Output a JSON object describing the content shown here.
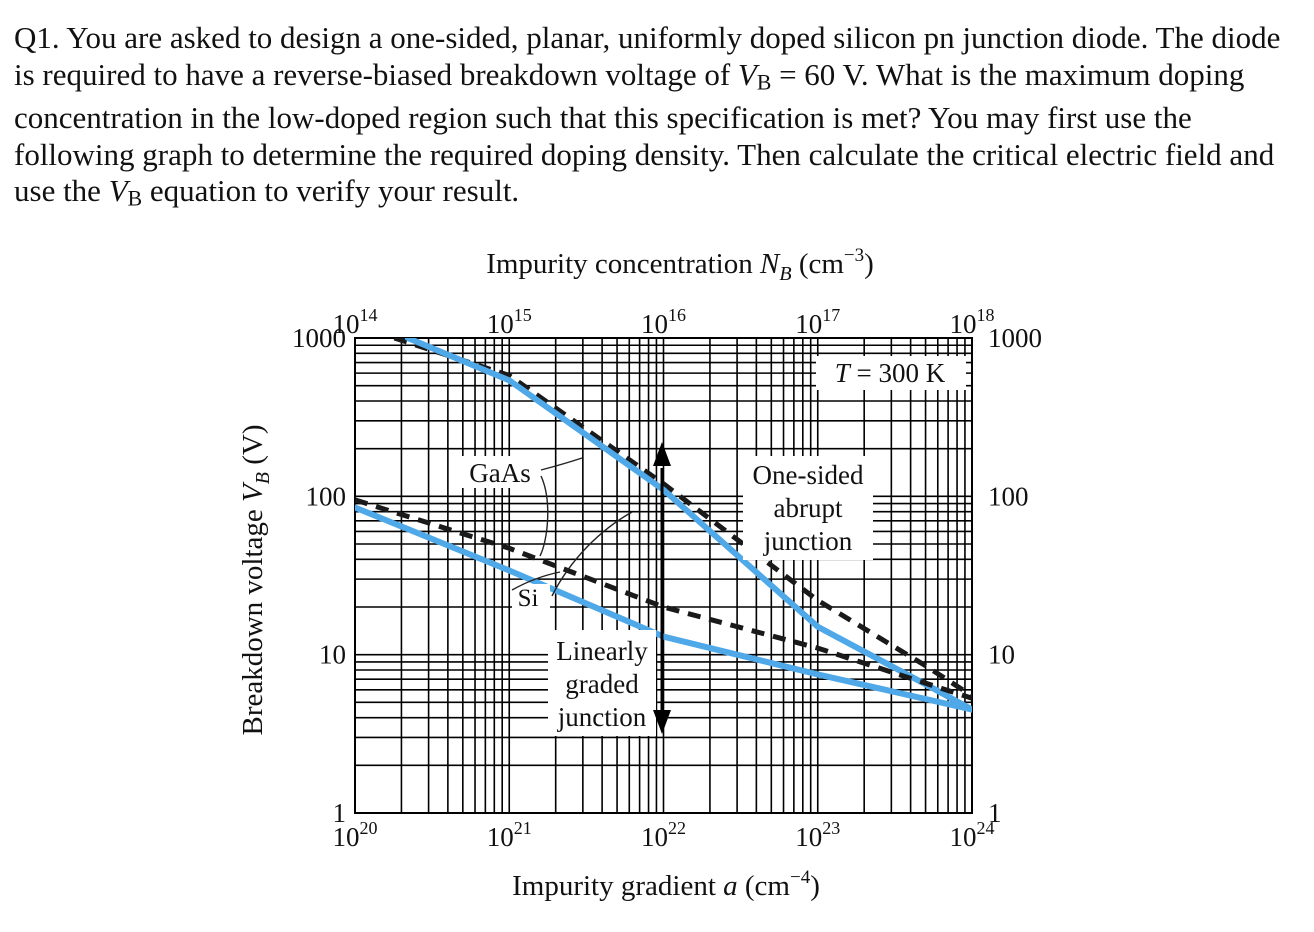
{
  "question": {
    "lead": "Q1. You are asked to design a one-sided, planar, uniformly doped silicon pn junction diode. The diode is required to have a reverse-biased breakdown voltage of ",
    "vb_symbol": "V",
    "vb_subscript": "B",
    "vb_value": " = 60 V. What is the maximum doping concentration in the low-doped region such that this specification is met? You may first use the following graph to determine the required doping density. Then calculate the critical electric field and use the ",
    "vb_symbol_2": "V",
    "vb_subscript_2": "B",
    "tail": " equation to verify your result."
  },
  "chart_data": {
    "type": "line",
    "scale": "log-log",
    "top_axis": {
      "label": "Impurity concentration N",
      "label_sub": "B",
      "label_unit": " (cm",
      "label_exp": "−3",
      "label_close": ")",
      "ticks": [
        {
          "base": "10",
          "exp": "14"
        },
        {
          "base": "10",
          "exp": "15"
        },
        {
          "base": "10",
          "exp": "16"
        },
        {
          "base": "10",
          "exp": "17"
        },
        {
          "base": "10",
          "exp": "18"
        }
      ],
      "range": [
        100000000000000.0,
        1e+18
      ]
    },
    "bottom_axis": {
      "label": "Impurity gradient ",
      "label_var": "a",
      "label_unit": " (cm",
      "label_exp": "−4",
      "label_close": ")",
      "ticks": [
        {
          "base": "10",
          "exp": "20"
        },
        {
          "base": "10",
          "exp": "21"
        },
        {
          "base": "10",
          "exp": "22"
        },
        {
          "base": "10",
          "exp": "23"
        },
        {
          "base": "10",
          "exp": "24"
        }
      ],
      "range": [
        1e+20,
        1e+24
      ]
    },
    "y_axis": {
      "label": "Breakdown voltage V",
      "label_sub": "B",
      "label_unit": " (V)",
      "ticks_left": [
        "1000",
        "100",
        "10",
        "1"
      ],
      "ticks_right": [
        "1000",
        "100",
        "10",
        "1"
      ],
      "range": [
        1,
        1000
      ]
    },
    "annotations": {
      "temperature": "T = 300 K",
      "gaas": "GaAs",
      "si": "Si",
      "one_sided": [
        "One-sided",
        "abrupt",
        "junction"
      ],
      "linearly": [
        "Linearly",
        "graded",
        "junction"
      ]
    },
    "series": [
      {
        "name": "GaAs one-sided abrupt",
        "axis": "top",
        "style": "dashed",
        "x": [
          180000000000000.0,
          1000000000000000.0,
          1e+16,
          1e+17,
          5e+17,
          1e+18
        ],
        "y": [
          1000,
          580,
          120,
          22,
          8.5,
          5.5
        ]
      },
      {
        "name": "Si one-sided abrupt",
        "axis": "top",
        "style": "solid",
        "x": [
          220000000000000.0,
          1000000000000000.0,
          1e+16,
          1e+17,
          5e+17,
          1e+18
        ],
        "y": [
          1000,
          540,
          110,
          15,
          6.5,
          4.5
        ]
      },
      {
        "name": "GaAs linearly graded",
        "axis": "bottom",
        "style": "dashed",
        "x": [
          1e+20,
          1e+21,
          1e+22,
          1e+23,
          1e+24
        ],
        "y": [
          95,
          47,
          20,
          11,
          5.3
        ]
      },
      {
        "name": "Si linearly graded",
        "axis": "bottom",
        "style": "solid",
        "x": [
          1e+20,
          1e+21,
          1e+22,
          1e+23,
          1e+24
        ],
        "y": [
          85,
          34,
          13,
          7.5,
          4.5
        ]
      }
    ],
    "colors": {
      "curve": "#4fa8e8",
      "grid": "#000000",
      "dashed": "#1a1a1a"
    }
  }
}
